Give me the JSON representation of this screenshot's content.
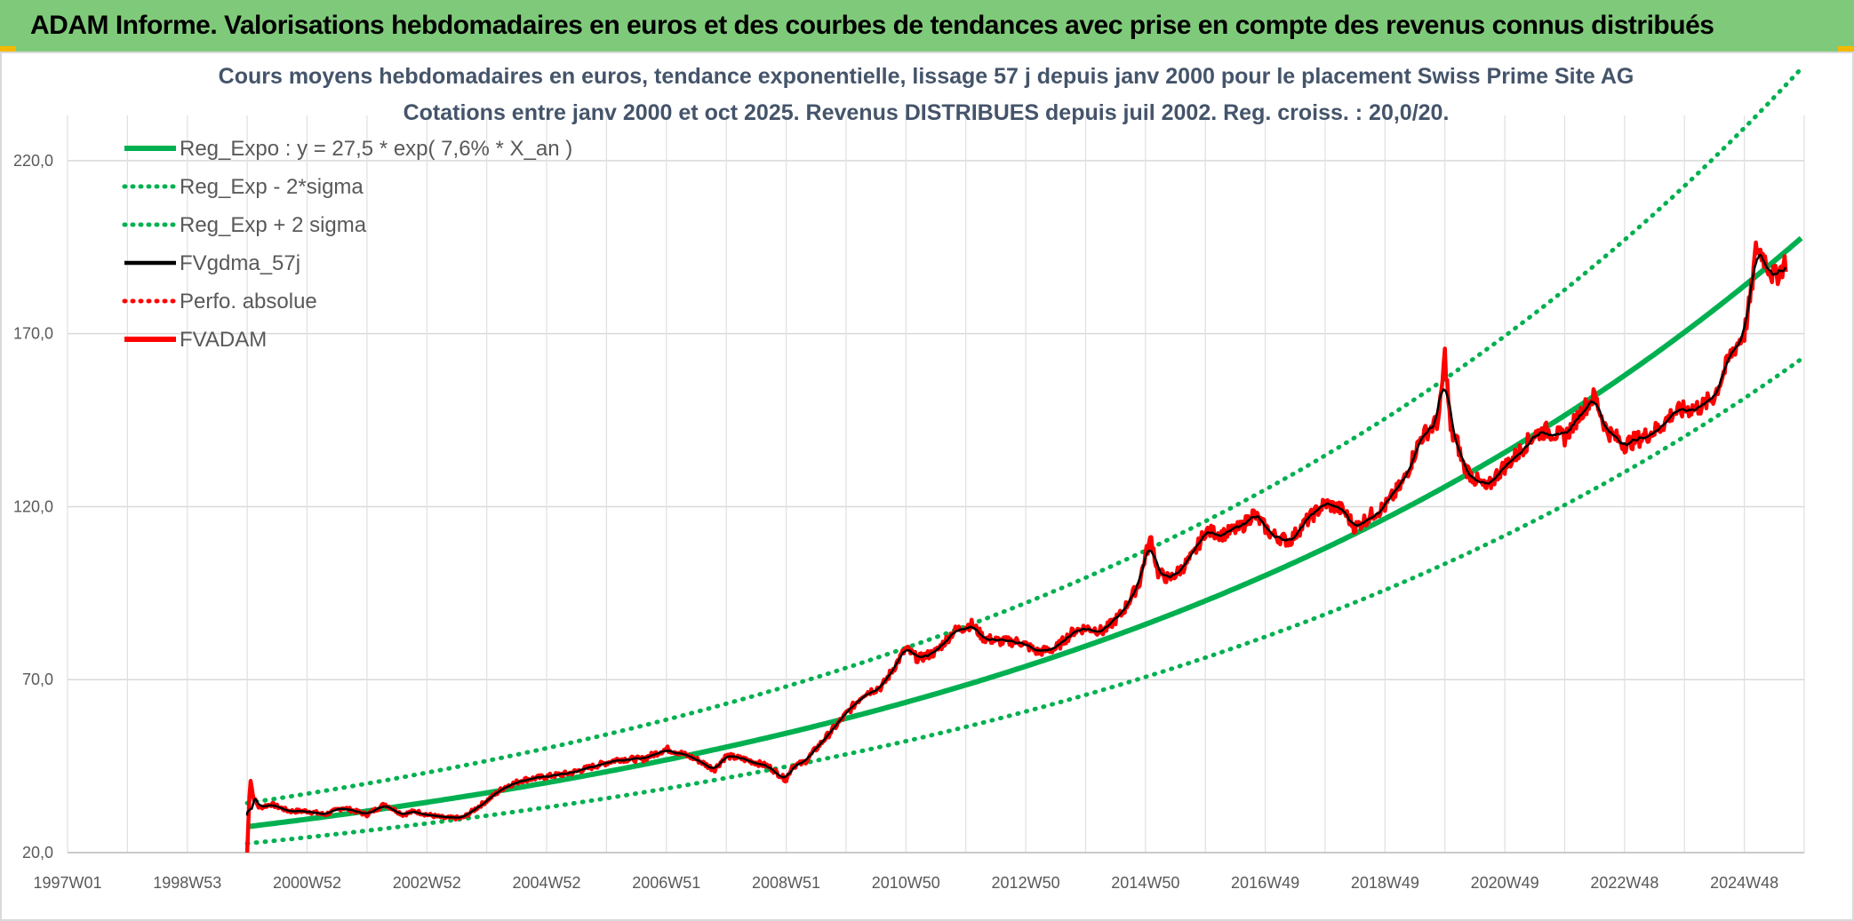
{
  "banner": {
    "title": "ADAM Informe. Valorisations hebdomadaires en euros et des courbes de tendances avec prise en compte des revenus connus distribués",
    "background": "#7fca7a",
    "accent": "#f5b800"
  },
  "chart_data": {
    "type": "line",
    "title": "Cours moyens hebdomadaires en euros, tendance exponentielle, lissage 57 j depuis janv 2000 pour le placement Swiss Prime Site AG",
    "subtitle": "Cotations entre janv 2000 et oct 2025. Revenus DISTRIBUES depuis juil 2002. Reg. croiss. : 20,0/20.",
    "xlabel": "",
    "ylabel": "",
    "x_range": [
      1997.0,
      2026.0
    ],
    "ylim": [
      20,
      240
    ],
    "y_ticks": [
      "20,0",
      "70,0",
      "120,0",
      "170,0",
      "220,0"
    ],
    "y_tick_values": [
      20,
      70,
      120,
      170,
      220
    ],
    "x_ticks": [
      "1997W01",
      "1998W53",
      "2000W52",
      "2002W52",
      "2004W52",
      "2006W51",
      "2008W51",
      "2010W50",
      "2012W50",
      "2014W50",
      "2016W49",
      "2018W49",
      "2020W49",
      "2022W48",
      "2024W48"
    ],
    "x_tick_values": [
      1997,
      1999,
      2001,
      2003,
      2005,
      2007,
      2009,
      2011,
      2013,
      2015,
      2017,
      2019,
      2021,
      2023,
      2025
    ],
    "grid": true,
    "legend_position": "top-left",
    "regression": {
      "a": 27.5,
      "rate": 0.076,
      "origin": 2000.0,
      "sigma_factor_upper": 1.248,
      "sigma_factor_lower": 0.823
    },
    "series": [
      {
        "name": "Reg_Expo : y = 27,5 * exp( 7,6% *  X_an )",
        "color": "#00b050",
        "style": "solid-thick",
        "kind": "reg"
      },
      {
        "name": "Reg_Exp - 2*sigma",
        "color": "#00b050",
        "style": "dotted",
        "kind": "reg_low"
      },
      {
        "name": "Reg_Exp + 2 sigma",
        "color": "#00b050",
        "style": "dotted",
        "kind": "reg_high"
      },
      {
        "name": "FVgdma_57j",
        "color": "#000000",
        "style": "solid",
        "kind": "smooth"
      },
      {
        "name": "Perfo. absolue",
        "color": "#ff0000",
        "style": "dotted",
        "kind": "none"
      },
      {
        "name": "FVADAM",
        "color": "#ff0000",
        "style": "solid-thick",
        "kind": "data",
        "x": [
          2000.0,
          2000.05,
          2000.1,
          2000.2,
          2000.4,
          2000.7,
          2001.0,
          2001.3,
          2001.6,
          2002.0,
          2002.3,
          2002.6,
          2002.8,
          2003.0,
          2003.3,
          2003.6,
          2004.0,
          2004.3,
          2004.6,
          2005.0,
          2005.4,
          2005.8,
          2006.2,
          2006.6,
          2007.0,
          2007.2,
          2007.5,
          2007.8,
          2008.0,
          2008.3,
          2008.7,
          2009.0,
          2009.1,
          2009.3,
          2009.6,
          2010.0,
          2010.3,
          2010.6,
          2011.0,
          2011.2,
          2011.5,
          2011.8,
          2012.1,
          2012.3,
          2012.6,
          2012.9,
          2013.2,
          2013.5,
          2013.8,
          2014.0,
          2014.3,
          2014.6,
          2014.9,
          2015.0,
          2015.1,
          2015.2,
          2015.4,
          2015.6,
          2015.8,
          2016.0,
          2016.3,
          2016.6,
          2016.8,
          2017.1,
          2017.4,
          2017.7,
          2018.0,
          2018.3,
          2018.5,
          2018.8,
          2019.0,
          2019.3,
          2019.6,
          2019.9,
          2020.0,
          2020.1,
          2020.2,
          2020.3,
          2020.5,
          2020.7,
          2020.9,
          2021.2,
          2021.5,
          2021.7,
          2022.0,
          2022.3,
          2022.5,
          2022.7,
          2023.0,
          2023.3,
          2023.6,
          2023.8,
          2024.0,
          2024.3,
          2024.5,
          2024.8,
          2025.0,
          2025.1,
          2025.2,
          2025.3,
          2025.5,
          2025.7
        ],
        "values": [
          20,
          42,
          36,
          33,
          34,
          32,
          32,
          31,
          33,
          31,
          34,
          31,
          32,
          31,
          30,
          30,
          35,
          39,
          41,
          42,
          43,
          45,
          47,
          47,
          50,
          49,
          47,
          44,
          48,
          47,
          45,
          41,
          45,
          46,
          52,
          60,
          66,
          68,
          79,
          76,
          78,
          84,
          86,
          82,
          81,
          81,
          78,
          79,
          84,
          85,
          84,
          89,
          98,
          106,
          111,
          101,
          99,
          102,
          106,
          113,
          112,
          114,
          118,
          112,
          110,
          116,
          121,
          119,
          114,
          118,
          120,
          127,
          140,
          145,
          164,
          141,
          139,
          132,
          128,
          125,
          130,
          135,
          141,
          142,
          140,
          148,
          152,
          142,
          138,
          140,
          143,
          147,
          148,
          149,
          152,
          165,
          170,
          180,
          195,
          193,
          186,
          191
        ]
      }
    ]
  }
}
